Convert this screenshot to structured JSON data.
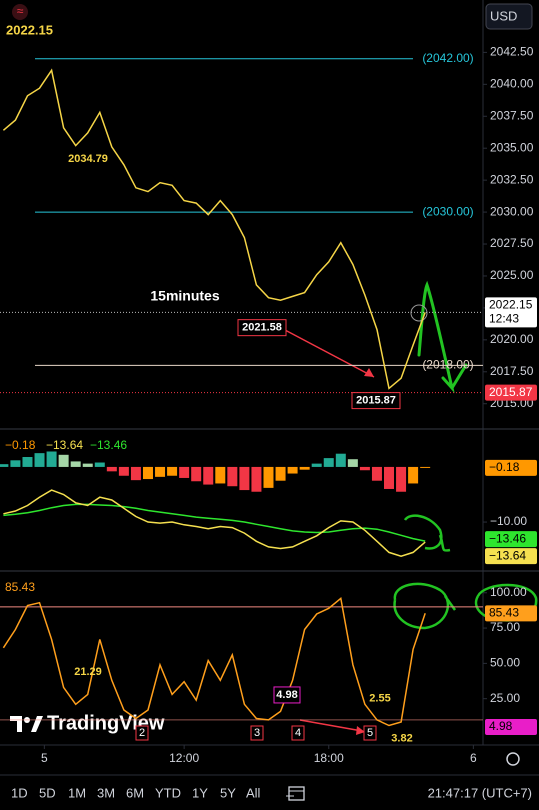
{
  "header": {
    "price": "2022.15",
    "currency": "USD"
  },
  "logo": "TradingView",
  "toolbar": {
    "ranges": [
      "1D",
      "5D",
      "1M",
      "3M",
      "6M",
      "YTD",
      "1Y",
      "5Y",
      "All"
    ],
    "clock": "21:47:17 (UTC+7)"
  },
  "chart_data": [
    {
      "type": "line",
      "title": "15minutes",
      "color": "#f5d547",
      "x": [
        4.5,
        5,
        5.5,
        6,
        6.5,
        7,
        7.5,
        8,
        8.5,
        9,
        9.5,
        10,
        10.5,
        11,
        11.5,
        12,
        12.5,
        13,
        13.5,
        14,
        14.5,
        15,
        15.5,
        16,
        16.5,
        17,
        17.5,
        18,
        18.5,
        19,
        19.5,
        20,
        20.5,
        21,
        21.5,
        22
      ],
      "values": [
        2036.4,
        2037.2,
        2039.1,
        2039.7,
        2041.1,
        2036.6,
        2035.2,
        2036.2,
        2037.8,
        2035.1,
        2033.7,
        2031.9,
        2031.6,
        2032.3,
        2032.1,
        2030.9,
        2030.7,
        2029.8,
        2030.9,
        2029.8,
        2028.0,
        2024.3,
        2023.3,
        2023.1,
        2023.4,
        2023.7,
        2025.1,
        2026.1,
        2027.6,
        2025.9,
        2023.5,
        2020.8,
        2016.2,
        2017.0,
        2019.6,
        2022.15
      ],
      "xlim": [
        4.36,
        24.4
      ],
      "ylim": [
        2013.1,
        2046.6
      ],
      "yticks": [
        {
          "value": 2042.5,
          "label": "2042.50"
        },
        {
          "value": 2040,
          "label": "2040.00"
        },
        {
          "value": 2037.5,
          "label": "2037.50"
        },
        {
          "value": 2035,
          "label": "2035.00"
        },
        {
          "value": 2032.5,
          "label": "2032.50"
        },
        {
          "value": 2030,
          "label": "2030.00"
        },
        {
          "value": 2027.5,
          "label": "2027.50"
        },
        {
          "value": 2025,
          "label": "2025.00"
        },
        {
          "value": 2022.5,
          "label": "2022.50"
        },
        {
          "value": 2020,
          "label": "2020.00"
        },
        {
          "value": 2017.5,
          "label": "2017.50"
        },
        {
          "value": 2015,
          "label": "2015.00"
        }
      ],
      "levels": [
        {
          "value": 2042,
          "label": "(2042.00)",
          "color": "#26c6da"
        },
        {
          "value": 2030,
          "label": "(2030.00)",
          "color": "#26c6da"
        },
        {
          "value": 2018,
          "label": "(2018.00)",
          "color": "#e8d7c8"
        }
      ],
      "low_level": {
        "value": 2015.87,
        "label": "2015.87",
        "color": "#f23645"
      },
      "last": {
        "value": 2022.15,
        "label": "2022.15",
        "countdown": "12:43"
      },
      "annotations": [
        {
          "value": 2034.79,
          "label": "2034.79"
        },
        {
          "value": 2021.58,
          "label": "2021.58"
        },
        {
          "value": 2015.87,
          "label": "2015.87"
        }
      ]
    },
    {
      "type": "macd",
      "x": [
        4.5,
        5,
        5.5,
        6,
        6.5,
        7,
        7.5,
        8,
        8.5,
        9,
        9.5,
        10,
        10.5,
        11,
        11.5,
        12,
        12.5,
        13,
        13.5,
        14,
        14.5,
        15,
        15.5,
        16,
        16.5,
        17,
        17.5,
        18,
        18.5,
        19,
        19.5,
        20,
        20.5,
        21,
        21.5,
        22
      ],
      "xlim": [
        4.36,
        24.4
      ],
      "ylim": [
        -18.7,
        6.7
      ],
      "yticks": [
        {
          "value": -10,
          "label": "−10.00"
        }
      ],
      "histogram": {
        "colors": [
          "#22ab94",
          "#a5d6a7",
          "#ff9800",
          "#f23645"
        ],
        "value_label": "−0.18",
        "label_color": "#ff9800",
        "values": [
          0.5,
          1.2,
          1.8,
          2.5,
          2.8,
          2.2,
          1.0,
          0.6,
          0.8,
          -0.8,
          -1.6,
          -2.4,
          -2.2,
          -1.8,
          -1.6,
          -2.0,
          -2.6,
          -3.2,
          -3.0,
          -3.5,
          -4.2,
          -4.5,
          -3.8,
          -2.5,
          -1.2,
          -0.5,
          0.6,
          1.6,
          2.4,
          1.4,
          -0.6,
          -2.5,
          -4.0,
          -4.5,
          -3.0,
          -0.18
        ]
      },
      "macd": {
        "color": "#f5e050",
        "value_label": "−13.64",
        "values": [
          -8.5,
          -8.0,
          -7.0,
          -5.5,
          -4.2,
          -5.0,
          -6.5,
          -7.0,
          -5.5,
          -6.0,
          -7.5,
          -9.0,
          -10.0,
          -10.2,
          -10.0,
          -10.5,
          -10.8,
          -11.2,
          -10.8,
          -11.0,
          -12.0,
          -13.5,
          -14.5,
          -14.8,
          -14.5,
          -13.5,
          -12.5,
          -11.0,
          -9.8,
          -10.0,
          -11.5,
          -13.5,
          -15.5,
          -16.2,
          -15.5,
          -13.64
        ]
      },
      "signal": {
        "color": "#2ee62e",
        "value_label": "−13.46",
        "values": [
          -8.8,
          -8.6,
          -8.3,
          -7.9,
          -7.4,
          -7.0,
          -6.8,
          -6.8,
          -6.9,
          -7.0,
          -7.2,
          -7.5,
          -7.9,
          -8.2,
          -8.5,
          -8.8,
          -9.1,
          -9.3,
          -9.5,
          -9.7,
          -10.0,
          -10.4,
          -10.8,
          -11.2,
          -11.6,
          -11.8,
          -11.9,
          -11.8,
          -11.5,
          -11.2,
          -11.1,
          -11.3,
          -11.8,
          -12.4,
          -13.0,
          -13.46
        ]
      }
    },
    {
      "type": "oscillator",
      "color": "#ff9f1c",
      "value_label": "85.43",
      "x": [
        4.5,
        5,
        5.5,
        6,
        6.5,
        7,
        7.5,
        8,
        8.5,
        9,
        9.5,
        10,
        10.5,
        11,
        11.5,
        12,
        12.5,
        13,
        13.5,
        14,
        14.5,
        15,
        15.5,
        16,
        16.5,
        17,
        17.5,
        18,
        18.5,
        19,
        19.5,
        20,
        20.5,
        21,
        21.5,
        22
      ],
      "values": [
        61,
        74,
        91,
        93,
        67,
        33,
        21,
        28,
        67,
        38,
        17,
        11,
        17,
        49,
        28,
        37,
        24,
        52,
        38,
        56,
        21,
        11,
        10,
        16,
        38,
        74,
        85,
        89,
        96,
        49,
        21,
        10,
        6,
        8.5,
        60,
        85.43
      ],
      "xlim": [
        4.36,
        24.4
      ],
      "ylim": [
        -7.8,
        114
      ],
      "xticks": [
        {
          "value": 6.2,
          "label": "5"
        },
        {
          "value": 12,
          "label": "12:00"
        },
        {
          "value": 18,
          "label": "18:00"
        },
        {
          "value": 24,
          "label": "6"
        }
      ],
      "yticks": [
        {
          "value": 100,
          "label": "100.00"
        },
        {
          "value": 75,
          "label": "75.00"
        },
        {
          "value": 50,
          "label": "50.00"
        },
        {
          "value": 25,
          "label": "25.00"
        }
      ],
      "bands": [
        90,
        10
      ],
      "band_color": "#f28b82",
      "second": {
        "value": 4.98,
        "label": "4.98",
        "color": "#e91ec8"
      },
      "markers": [
        {
          "value": 21.29,
          "label": "21.29"
        },
        {
          "value": 4.98,
          "label": "4.98"
        },
        {
          "value": 2.55,
          "label": "2.55"
        },
        {
          "value": 3.82,
          "label": "3.82"
        }
      ],
      "wave_labels": [
        "2",
        "3",
        "4",
        "5"
      ]
    }
  ]
}
